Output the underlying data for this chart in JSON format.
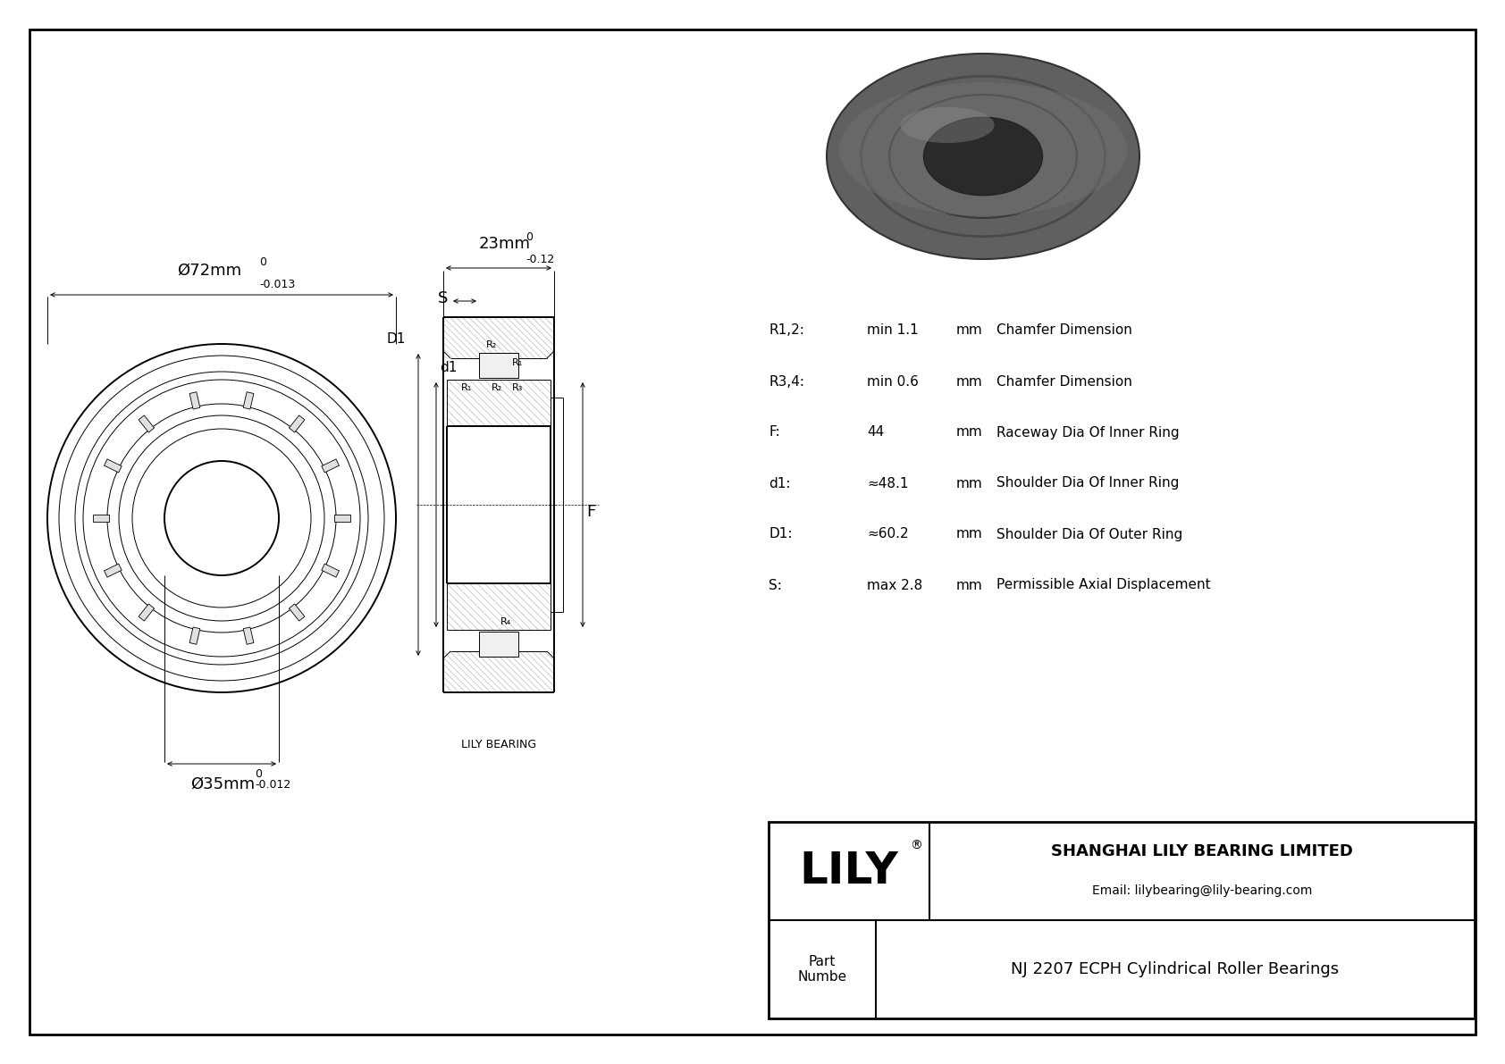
{
  "bg_color": "#ffffff",
  "black": "#000000",
  "gray_hatch": "#999999",
  "gray_photo_outer": "#606060",
  "gray_photo_inner": "#404040",
  "gray_photo_bore": "#888888",
  "gray_photo_face": "#505050",
  "title": "NJ 2207 ECPH Cylindrical Roller Bearings",
  "company": "SHANGHAI LILY BEARING LIMITED",
  "email": "Email: lilybearing@lily-bearing.com",
  "brand": "LILY",
  "part_label": "Part\nNumbe",
  "lily_bearing_label": "LILY BEARING",
  "dim_od_main": "Ø72mm",
  "dim_od_sup": "0",
  "dim_od_sub": "-0.013",
  "dim_id_main": "Ø35mm",
  "dim_id_sup": "0",
  "dim_id_sub": "-0.012",
  "dim_w_main": "23mm",
  "dim_w_sup": "0",
  "dim_w_sub": "-0.12",
  "params": [
    {
      "label": "R1,2:",
      "value": "min 1.1",
      "unit": "mm",
      "desc": "Chamfer Dimension"
    },
    {
      "label": "R3,4:",
      "value": "min 0.6",
      "unit": "mm",
      "desc": "Chamfer Dimension"
    },
    {
      "label": "F:",
      "value": "44",
      "unit": "mm",
      "desc": "Raceway Dia Of Inner Ring"
    },
    {
      "label": "d1:",
      "value": "≈48.1",
      "unit": "mm",
      "desc": "Shoulder Dia Of Inner Ring"
    },
    {
      "label": "D1:",
      "value": "≈60.2",
      "unit": "mm",
      "desc": "Shoulder Dia Of Outer Ring"
    },
    {
      "label": "S:",
      "value": "max 2.8",
      "unit": "mm",
      "desc": "Permissible Axial Displacement"
    }
  ],
  "note_r12": "R1,2:",
  "note_r34": "R3,4:",
  "lw_thick": 1.4,
  "lw_thin": 0.7,
  "lw_dim": 0.7
}
